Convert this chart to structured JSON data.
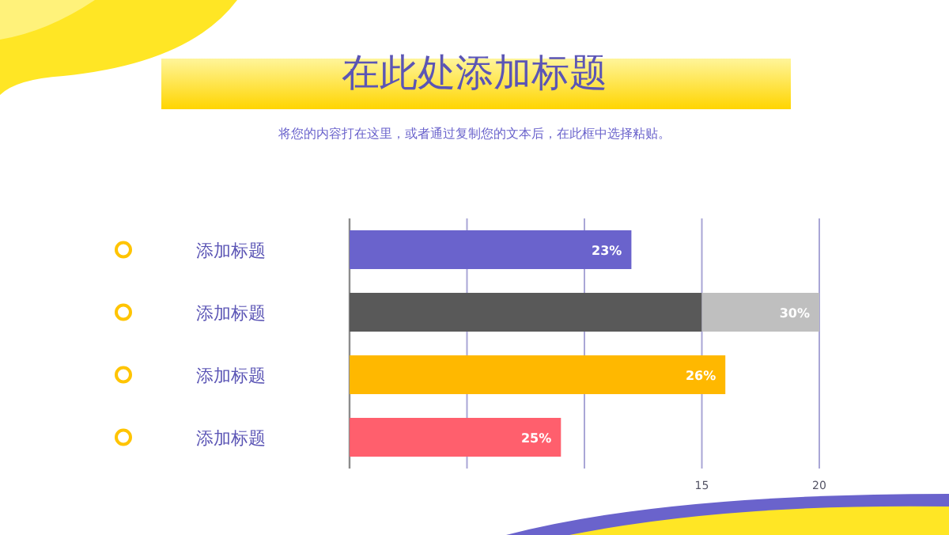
{
  "chart_data": {
    "type": "bar",
    "orientation": "horizontal",
    "stacked": true,
    "title": "在此处添加标题",
    "subtitle": "将您的内容打在这里，或者通过复制您的文本后，在此框中选择粘贴。",
    "categories": [
      "添加标题",
      "添加标题",
      "添加标题",
      "添加标题"
    ],
    "series": [
      {
        "colors": [
          "#6a63cc",
          "#595959",
          "#ffb800",
          "#ff5f6d"
        ],
        "values": [
          12,
          15,
          16,
          9
        ]
      },
      {
        "color": "#bfbfbf",
        "values": [
          null,
          5,
          null,
          null
        ]
      }
    ],
    "annotations": [
      {
        "text": "23%",
        "x": 12
      },
      {
        "text": "30%",
        "x": 20
      },
      {
        "text": "26%",
        "x": 16
      },
      {
        "text": "25%",
        "x": 9
      }
    ],
    "xlim": [
      0,
      20
    ],
    "xticks": [
      {
        "value": 0,
        "label": null
      },
      {
        "value": 5,
        "label": null
      },
      {
        "value": 10,
        "label": null
      },
      15,
      20
    ],
    "grid": "x"
  }
}
